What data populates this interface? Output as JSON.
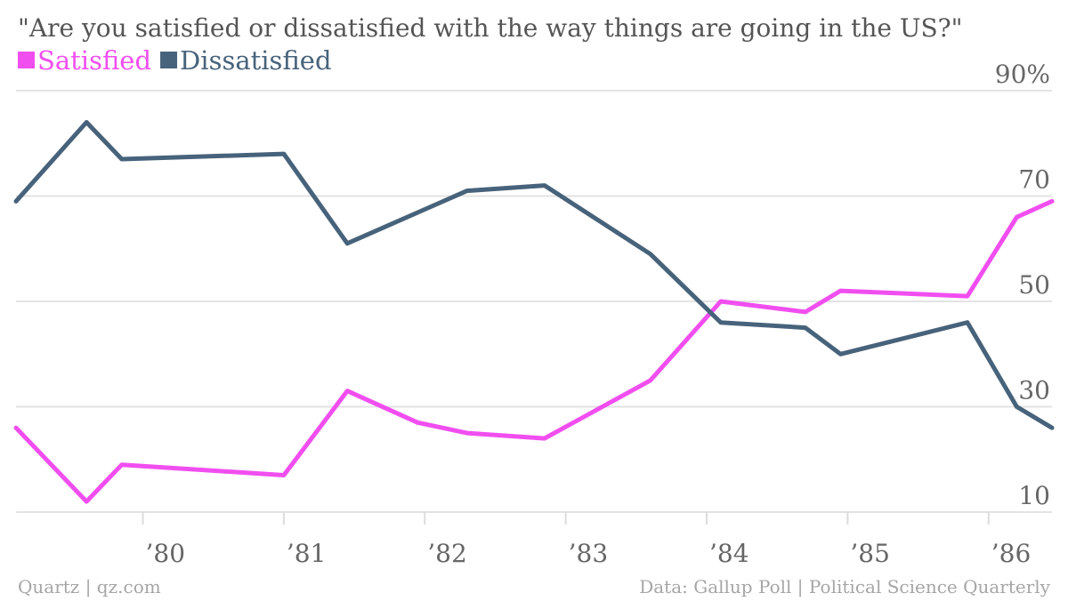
{
  "chart_data": {
    "type": "line",
    "title": "\"Are you satisfied or dissatisfied with the way things are going in the US?\"",
    "xlabel": "",
    "ylabel": "",
    "ylim": [
      10,
      90
    ],
    "y_ticks": [
      "90%",
      "70",
      "50",
      "30",
      "10"
    ],
    "y_tick_values": [
      90,
      70,
      50,
      30,
      10
    ],
    "x_ticks": [
      "’80",
      "’81",
      "’82",
      "’83",
      "’84",
      "’85",
      "’86"
    ],
    "x_tick_values": [
      1980,
      1981,
      1982,
      1983,
      1984,
      1985,
      1986
    ],
    "xlim": [
      1979.1,
      1986.45
    ],
    "grid": true,
    "legend_position": "top-left",
    "series": [
      {
        "name": "Satisfied",
        "color": "#f14ef0",
        "x": [
          1979.1,
          1979.6,
          1979.85,
          1981.0,
          1981.45,
          1981.95,
          1982.3,
          1982.85,
          1983.6,
          1984.1,
          1984.7,
          1984.95,
          1985.85,
          1986.2,
          1986.45
        ],
        "y": [
          26,
          12,
          19,
          17,
          33,
          27,
          25,
          24,
          35,
          50,
          48,
          52,
          51,
          66,
          69
        ]
      },
      {
        "name": "Dissatisfied",
        "color": "#47637b",
        "x": [
          1979.1,
          1979.6,
          1979.85,
          1981.0,
          1981.45,
          1982.3,
          1982.85,
          1983.6,
          1984.1,
          1984.7,
          1984.95,
          1985.85,
          1986.2,
          1986.45
        ],
        "y": [
          69,
          84,
          77,
          78,
          61,
          71,
          72,
          59,
          46,
          45,
          40,
          46,
          30,
          26
        ]
      }
    ]
  },
  "footer": {
    "left": "Quartz | qz.com",
    "right": "Data: Gallup Poll | Political Science Quarterly"
  }
}
